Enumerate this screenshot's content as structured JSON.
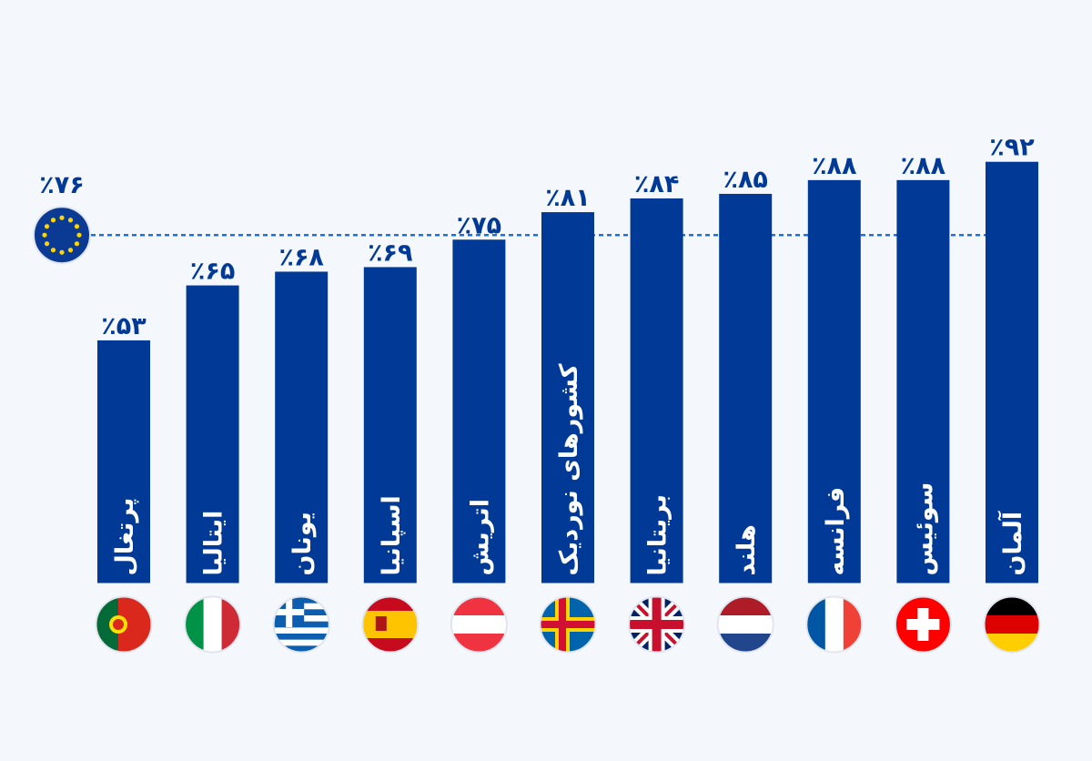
{
  "chart_data": {
    "type": "bar",
    "categories": [
      "پرتغال",
      "ایتالیا",
      "یونان",
      "اسپانیا",
      "اتریش",
      "کشورهای نوردیک",
      "بریتانیا",
      "هلند",
      "فرانسه",
      "سوئیس",
      "آلمان"
    ],
    "values": [
      53,
      65,
      68,
      69,
      75,
      81,
      84,
      85,
      88,
      88,
      92
    ],
    "value_labels": [
      "٪۵۳",
      "٪۶۵",
      "٪۶۸",
      "٪۶۹",
      "٪۷۵",
      "٪۸۱",
      "٪۸۴",
      "٪۸۵",
      "٪۸۸",
      "٪۸۸",
      "٪۹۲"
    ],
    "color": "#003a96",
    "ylim": [
      0,
      100
    ],
    "reference_line": {
      "value": 76,
      "label": "٪۷۶",
      "color": "#1f6fd6"
    }
  }
}
